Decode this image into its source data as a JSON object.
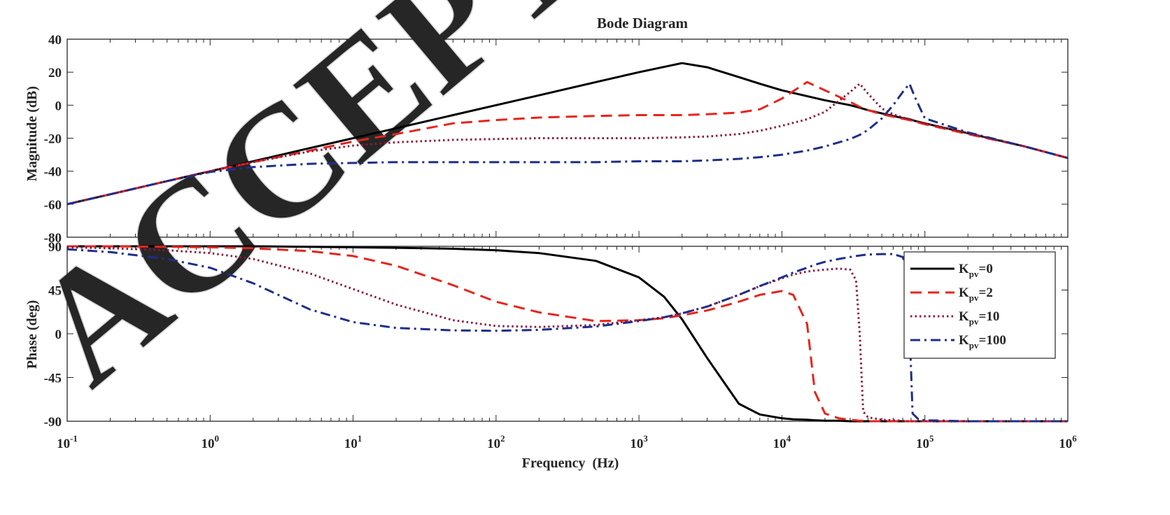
{
  "watermark": "ACCEPTED",
  "chart_data": [
    {
      "type": "line",
      "title": "Bode Diagram",
      "xlabel": "",
      "ylabel": "Magnitude (dB)",
      "xscale": "log",
      "xlim": [
        0.1,
        1000000
      ],
      "ylim": [
        -80,
        40
      ],
      "yticks": [
        40,
        20,
        0,
        -20,
        -40,
        -60,
        -80
      ],
      "grid": false,
      "x": [
        0.1,
        0.2,
        0.5,
        1,
        2,
        5,
        10,
        20,
        50,
        100,
        200,
        500,
        1000,
        2000,
        3000,
        5000,
        7000,
        10000,
        15000,
        20000,
        30000,
        35000,
        40000,
        50000,
        60000,
        70000,
        78000,
        85000,
        100000,
        200000,
        500000,
        1000000
      ],
      "series": [
        {
          "name": "K_pv=0",
          "color": "#000000",
          "dash": "solid",
          "values": [
            -60,
            -54,
            -46,
            -40,
            -34,
            -26,
            -20,
            -14,
            -6,
            0,
            6,
            14,
            20,
            25.5,
            23,
            17,
            13,
            9,
            5.5,
            3,
            0,
            -1.5,
            -3,
            -5,
            -6.5,
            -7.8,
            -8.5,
            -9.5,
            -11,
            -17,
            -25,
            -32
          ]
        },
        {
          "name": "K_pv=2",
          "color": "#e8241c",
          "dash": "dashed",
          "values": [
            -60,
            -54,
            -46,
            -40,
            -34.5,
            -27.5,
            -22,
            -17.5,
            -11,
            -9,
            -7.5,
            -6.5,
            -6,
            -6,
            -5.5,
            -4.5,
            -2.5,
            4,
            14,
            9,
            2,
            -1,
            -3,
            -5.5,
            -7,
            -8.2,
            -9,
            -10,
            -11.5,
            -17.5,
            -25,
            -32
          ]
        },
        {
          "name": "K_pv=10",
          "color": "#8b1a3c",
          "dash": "dotted",
          "values": [
            -60,
            -54,
            -46,
            -40,
            -34.5,
            -28,
            -24.5,
            -22.5,
            -21,
            -20.5,
            -20,
            -20,
            -20,
            -19.5,
            -19,
            -17.5,
            -15.5,
            -12.5,
            -8.5,
            -4,
            8,
            13,
            7,
            -2,
            -5.5,
            -7.5,
            -8.5,
            -9.5,
            -11,
            -17,
            -25,
            -32
          ]
        },
        {
          "name": "K_pv=100",
          "color": "#1f2e8a",
          "dash": "dashdot",
          "values": [
            -60,
            -54,
            -46,
            -40.5,
            -37.5,
            -35.5,
            -35,
            -34.5,
            -34.5,
            -34.5,
            -34.5,
            -34.5,
            -34,
            -34,
            -33.5,
            -32.5,
            -31.5,
            -30,
            -27.5,
            -25,
            -20.5,
            -18,
            -15,
            -8,
            0,
            8,
            13,
            5,
            -8,
            -16.5,
            -25,
            -32
          ]
        }
      ]
    },
    {
      "type": "line",
      "title": "",
      "xlabel": "Frequency  (Hz)",
      "ylabel": "Phase (deg)",
      "xscale": "log",
      "xlim": [
        0.1,
        1000000
      ],
      "ylim": [
        -90,
        90
      ],
      "yticks": [
        90,
        45,
        0,
        -45,
        -90
      ],
      "xticks": [
        {
          "base": "10",
          "exp": "-1",
          "value": 0.1
        },
        {
          "base": "10",
          "exp": "0",
          "value": 1
        },
        {
          "base": "10",
          "exp": "1",
          "value": 10
        },
        {
          "base": "10",
          "exp": "2",
          "value": 100
        },
        {
          "base": "10",
          "exp": "3",
          "value": 1000
        },
        {
          "base": "10",
          "exp": "4",
          "value": 10000
        },
        {
          "base": "10",
          "exp": "5",
          "value": 100000
        },
        {
          "base": "10",
          "exp": "6",
          "value": 1000000
        }
      ],
      "grid": false,
      "legend_position": "right",
      "legend": [
        {
          "main": "K",
          "sub": "pv",
          "suffix": "=0"
        },
        {
          "main": "K",
          "sub": "pv",
          "suffix": "=2"
        },
        {
          "main": "K",
          "sub": "pv",
          "suffix": "=10"
        },
        {
          "main": "K",
          "sub": "pv",
          "suffix": "=100"
        }
      ],
      "x": [
        0.1,
        0.2,
        0.5,
        1,
        2,
        5,
        10,
        20,
        50,
        100,
        200,
        500,
        1000,
        1500,
        2000,
        3000,
        5000,
        7000,
        10000,
        12000,
        15000,
        17000,
        20000,
        25000,
        30000,
        33000,
        35000,
        37000,
        40000,
        50000,
        60000,
        70000,
        75000,
        78000,
        82000,
        90000,
        100000,
        200000,
        1000000
      ],
      "series": [
        {
          "name": "K_pv=0",
          "color": "#000000",
          "dash": "solid",
          "values": [
            90,
            90,
            90,
            90,
            90,
            89.5,
            89,
            88.5,
            87.5,
            86,
            83,
            75,
            58,
            38,
            15,
            -25,
            -72,
            -83,
            -87,
            -88,
            -88.5,
            -89,
            -89.5,
            -89.5,
            -90,
            -90,
            -90,
            -90,
            -90,
            -90,
            -90,
            -90,
            -90,
            -90,
            -90,
            -90,
            -90,
            -90,
            -90
          ]
        },
        {
          "name": "K_pv=2",
          "color": "#e8241c",
          "dash": "dashed",
          "values": [
            90,
            90,
            89.5,
            89,
            88,
            85,
            80,
            70,
            50,
            33,
            22,
            13,
            14,
            16,
            19,
            24,
            33,
            40,
            44,
            40,
            10,
            -60,
            -82,
            -87,
            -88.5,
            -89,
            -89.5,
            -89.5,
            -90,
            -90,
            -90,
            -90,
            -90,
            -90,
            -90,
            -90,
            -90,
            -90,
            -90
          ]
        },
        {
          "name": "K_pv=10",
          "color": "#8b1a3c",
          "dash": "dotted",
          "values": [
            89,
            88,
            86,
            83,
            77,
            62,
            46,
            30,
            14,
            8,
            7,
            9,
            14,
            17,
            21,
            28,
            40,
            49,
            57,
            61,
            64,
            65,
            66,
            67,
            66,
            55,
            0,
            -80,
            -86,
            -88.5,
            -89,
            -89.5,
            -90,
            -90,
            -90,
            -90,
            -90,
            -90,
            -90
          ]
        },
        {
          "name": "K_pv=100",
          "color": "#1f2e8a",
          "dash": "dashdot",
          "values": [
            87,
            84,
            77,
            68,
            52,
            25,
            12,
            6,
            3.5,
            3,
            4,
            7.5,
            13,
            17,
            21,
            28,
            40,
            49,
            58,
            63,
            68,
            71,
            74,
            77,
            79,
            80,
            80.5,
            81,
            81.5,
            82,
            82,
            79,
            65,
            10,
            -82,
            -88,
            -89,
            -90,
            -90
          ]
        }
      ]
    }
  ]
}
